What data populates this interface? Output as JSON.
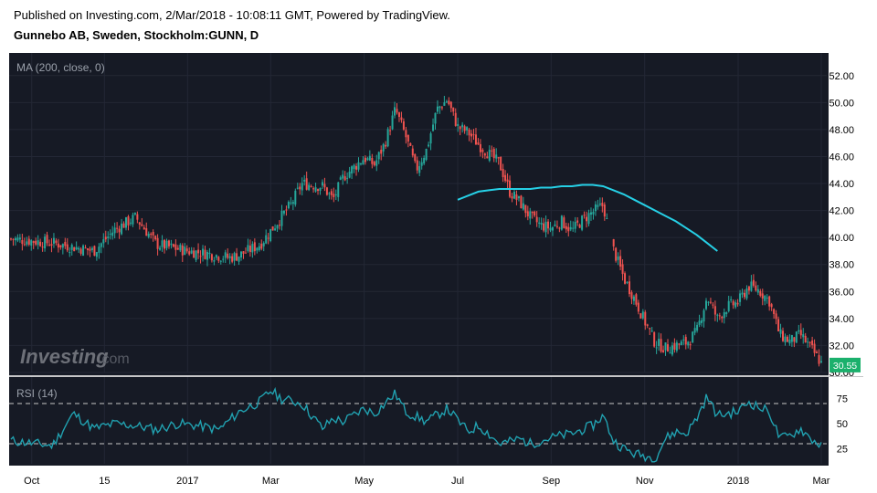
{
  "header": {
    "published": "Published on Investing.com, 2/Mar/2018 - 10:08:11 GMT, Powered by TradingView.",
    "symbol": "Gunnebo AB, Sweden, Stockholm:GUNN, D"
  },
  "chart_data": {
    "type": "candlestick",
    "price_panel": {
      "indicator_label": "MA (200, close, 0)",
      "y_ticks": [
        "52.00",
        "50.00",
        "48.00",
        "46.00",
        "44.00",
        "42.00",
        "40.00",
        "38.00",
        "36.00",
        "34.00",
        "32.00",
        "30.00"
      ],
      "ylim": [
        30,
        53
      ],
      "last_price": "30.55",
      "up_color": "#26a69a",
      "down_color": "#ef5350",
      "ma_color": "#26d0e6",
      "close_trend": [
        [
          0,
          39.9
        ],
        [
          4,
          39.6
        ],
        [
          8,
          39.0
        ],
        [
          10,
          40.6
        ],
        [
          12,
          41.5
        ],
        [
          14,
          39.5
        ],
        [
          17,
          39.0
        ],
        [
          19,
          38.8
        ],
        [
          21,
          38.5
        ],
        [
          22,
          38.7
        ],
        [
          24,
          39.5
        ],
        [
          25,
          40.5
        ],
        [
          27,
          42.5
        ],
        [
          28,
          44.0
        ],
        [
          30,
          43.8
        ],
        [
          31,
          42.8
        ],
        [
          32,
          44.5
        ],
        [
          34,
          45.9
        ],
        [
          35,
          45.4
        ],
        [
          36,
          47.0
        ],
        [
          37,
          49.5
        ],
        [
          38,
          47.5
        ],
        [
          39,
          45.0
        ],
        [
          40,
          46.5
        ],
        [
          41,
          49.5
        ],
        [
          42,
          50.2
        ],
        [
          43,
          48.2
        ],
        [
          44,
          47.8
        ],
        [
          45,
          46.9
        ],
        [
          46,
          46.2
        ],
        [
          47,
          45.5
        ],
        [
          47.6,
          44.3
        ],
        [
          48,
          43.4
        ],
        [
          49,
          42.6
        ],
        [
          50,
          41.5
        ],
        [
          51,
          40.9
        ],
        [
          52,
          40.7
        ],
        [
          53,
          41.2
        ],
        [
          54,
          40.5
        ],
        [
          55,
          41.3
        ],
        [
          56,
          41.9
        ],
        [
          57,
          42.4
        ],
        [
          58,
          39.1
        ],
        [
          59,
          37.0
        ],
        [
          60,
          35.5
        ],
        [
          61,
          33.8
        ],
        [
          62,
          32.2
        ],
        [
          63,
          31.8
        ],
        [
          64,
          32.0
        ],
        [
          65,
          32.2
        ],
        [
          66,
          33.0
        ],
        [
          67,
          35.6
        ],
        [
          68,
          34.0
        ],
        [
          69,
          34.9
        ],
        [
          70,
          35.2
        ],
        [
          71,
          36.4
        ],
        [
          72,
          36.1
        ],
        [
          73,
          35.3
        ],
        [
          74,
          32.8
        ],
        [
          75,
          32.3
        ],
        [
          76,
          32.8
        ],
        [
          77,
          31.8
        ],
        [
          78,
          30.7
        ]
      ],
      "ma200": [
        [
          43,
          42.8
        ],
        [
          44,
          43.1
        ],
        [
          45,
          43.4
        ],
        [
          46,
          43.5
        ],
        [
          47,
          43.6
        ],
        [
          48,
          43.6
        ],
        [
          49,
          43.6
        ],
        [
          50,
          43.6
        ],
        [
          51,
          43.7
        ],
        [
          52,
          43.7
        ],
        [
          53,
          43.8
        ],
        [
          54,
          43.8
        ],
        [
          55,
          43.9
        ],
        [
          56,
          43.9
        ],
        [
          57,
          43.8
        ],
        [
          58,
          43.5
        ],
        [
          59,
          43.2
        ],
        [
          60,
          42.8
        ],
        [
          61,
          42.4
        ],
        [
          62,
          42.0
        ],
        [
          63,
          41.6
        ],
        [
          64,
          41.2
        ],
        [
          65,
          40.7
        ],
        [
          66,
          40.2
        ],
        [
          67,
          39.6
        ],
        [
          68,
          39.0
        ]
      ]
    },
    "rsi_panel": {
      "label": "RSI (14)",
      "y_ticks": [
        "75",
        "50",
        "25"
      ],
      "ylim": [
        10,
        90
      ],
      "levels": [
        70,
        30
      ],
      "line_color": "#21a1b0",
      "values": [
        [
          0,
          33
        ],
        [
          4,
          28
        ],
        [
          6,
          60
        ],
        [
          8,
          45
        ],
        [
          10,
          50
        ],
        [
          12,
          48
        ],
        [
          14,
          44
        ],
        [
          16,
          50
        ],
        [
          18,
          48
        ],
        [
          20,
          44
        ],
        [
          22,
          62
        ],
        [
          24,
          72
        ],
        [
          25,
          83
        ],
        [
          26,
          75
        ],
        [
          28,
          70
        ],
        [
          30,
          45
        ],
        [
          31,
          55
        ],
        [
          32,
          52
        ],
        [
          34,
          65
        ],
        [
          35,
          60
        ],
        [
          36,
          70
        ],
        [
          37,
          80
        ],
        [
          38,
          62
        ],
        [
          40,
          52
        ],
        [
          42,
          65
        ],
        [
          44,
          42
        ],
        [
          45,
          48
        ],
        [
          46,
          40
        ],
        [
          47,
          30
        ],
        [
          48,
          32
        ],
        [
          49,
          35
        ],
        [
          50,
          30
        ],
        [
          52,
          36
        ],
        [
          54,
          40
        ],
        [
          56,
          48
        ],
        [
          57,
          58
        ],
        [
          58,
          33
        ],
        [
          59,
          25
        ],
        [
          60,
          20
        ],
        [
          61,
          18
        ],
        [
          62,
          15
        ],
        [
          63,
          35
        ],
        [
          64,
          42
        ],
        [
          65,
          40
        ],
        [
          66,
          55
        ],
        [
          67,
          77
        ],
        [
          68,
          58
        ],
        [
          69,
          60
        ],
        [
          70,
          62
        ],
        [
          71,
          72
        ],
        [
          72,
          66
        ],
        [
          73,
          62
        ],
        [
          74,
          35
        ],
        [
          75,
          38
        ],
        [
          76,
          45
        ],
        [
          77,
          35
        ],
        [
          78,
          28
        ]
      ]
    },
    "x_ticks": [
      {
        "label": "Oct",
        "t": 2
      },
      {
        "label": "15",
        "t": 9
      },
      {
        "label": "2017",
        "t": 17
      },
      {
        "label": "Mar",
        "t": 25
      },
      {
        "label": "May",
        "t": 34
      },
      {
        "label": "Jul",
        "t": 43
      },
      {
        "label": "Sep",
        "t": 52
      },
      {
        "label": "Nov",
        "t": 61
      },
      {
        "label": "2018",
        "t": 70
      },
      {
        "label": "Mar",
        "t": 78
      }
    ],
    "t_range": [
      0,
      78
    ]
  },
  "watermark": {
    "brand": "Investing",
    "suffix": ".com"
  }
}
